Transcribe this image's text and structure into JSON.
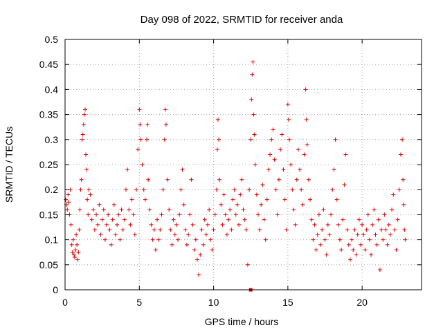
{
  "chart_data": {
    "type": "scatter",
    "title": "Day 098 of 2022, SRMTID for receiver anda",
    "xlabel": "GPS time / hours",
    "ylabel": "SRMTID / TECUs",
    "xlim": [
      0,
      24
    ],
    "ylim": [
      0,
      0.5
    ],
    "xticks": [
      0,
      5,
      10,
      15,
      20
    ],
    "xtick_labels": [
      "0",
      "5",
      "10",
      "15",
      "20"
    ],
    "yticks": [
      0,
      0.05,
      0.1,
      0.15,
      0.2,
      0.25,
      0.3,
      0.35,
      0.4,
      0.45,
      0.5
    ],
    "ytick_labels": [
      "0",
      "0.05",
      "0.1",
      "0.15",
      "0.2",
      "0.25",
      "0.3",
      "0.35",
      "0.4",
      "0.45",
      "0.5"
    ],
    "grid": true,
    "marker": "plus",
    "color": "#e00000",
    "series": [
      {
        "name": "SRMTID",
        "points": [
          [
            0.05,
            0.18
          ],
          [
            0.1,
            0.17
          ],
          [
            0.15,
            0.16
          ],
          [
            0.2,
            0.19
          ],
          [
            0.25,
            0.175
          ],
          [
            0.3,
            0.15
          ],
          [
            0.35,
            0.2
          ],
          [
            0.4,
            0.13
          ],
          [
            0.45,
            0.09
          ],
          [
            0.5,
            0.075
          ],
          [
            0.55,
            0.1
          ],
          [
            0.6,
            0.07
          ],
          [
            0.65,
            0.065
          ],
          [
            0.7,
            0.08
          ],
          [
            0.75,
            0.11
          ],
          [
            0.8,
            0.09
          ],
          [
            0.85,
            0.06
          ],
          [
            0.9,
            0.075
          ],
          [
            0.95,
            0.12
          ],
          [
            1.0,
            0.16
          ],
          [
            1.05,
            0.2
          ],
          [
            1.1,
            0.22
          ],
          [
            1.15,
            0.3
          ],
          [
            1.2,
            0.31
          ],
          [
            1.25,
            0.33
          ],
          [
            1.3,
            0.35
          ],
          [
            1.35,
            0.36
          ],
          [
            1.4,
            0.27
          ],
          [
            1.45,
            0.24
          ],
          [
            1.5,
            0.18
          ],
          [
            1.55,
            0.15
          ],
          [
            1.6,
            0.2
          ],
          [
            1.7,
            0.19
          ],
          [
            1.8,
            0.14
          ],
          [
            1.9,
            0.16
          ],
          [
            2.0,
            0.12
          ],
          [
            2.1,
            0.15
          ],
          [
            2.2,
            0.13
          ],
          [
            2.3,
            0.17
          ],
          [
            2.4,
            0.11
          ],
          [
            2.5,
            0.14
          ],
          [
            2.6,
            0.16
          ],
          [
            2.7,
            0.1
          ],
          [
            2.8,
            0.13
          ],
          [
            2.9,
            0.15
          ],
          [
            3.0,
            0.12
          ],
          [
            3.1,
            0.09
          ],
          [
            3.2,
            0.14
          ],
          [
            3.3,
            0.17
          ],
          [
            3.4,
            0.11
          ],
          [
            3.5,
            0.13
          ],
          [
            3.6,
            0.15
          ],
          [
            3.7,
            0.1
          ],
          [
            3.8,
            0.16
          ],
          [
            3.9,
            0.12
          ],
          [
            4.0,
            0.14
          ],
          [
            4.1,
            0.2
          ],
          [
            4.2,
            0.24
          ],
          [
            4.3,
            0.16
          ],
          [
            4.4,
            0.13
          ],
          [
            4.5,
            0.18
          ],
          [
            4.6,
            0.15
          ],
          [
            4.7,
            0.11
          ],
          [
            4.8,
            0.2
          ],
          [
            4.9,
            0.28
          ],
          [
            5.0,
            0.36
          ],
          [
            5.05,
            0.33
          ],
          [
            5.1,
            0.3
          ],
          [
            5.2,
            0.25
          ],
          [
            5.3,
            0.2
          ],
          [
            5.4,
            0.18
          ],
          [
            5.5,
            0.3
          ],
          [
            5.55,
            0.33
          ],
          [
            5.6,
            0.22
          ],
          [
            5.7,
            0.16
          ],
          [
            5.8,
            0.13
          ],
          [
            5.9,
            0.1
          ],
          [
            6.0,
            0.12
          ],
          [
            6.1,
            0.08
          ],
          [
            6.2,
            0.14
          ],
          [
            6.3,
            0.1
          ],
          [
            6.4,
            0.12
          ],
          [
            6.5,
            0.15
          ],
          [
            6.6,
            0.2
          ],
          [
            6.7,
            0.3
          ],
          [
            6.75,
            0.36
          ],
          [
            6.8,
            0.33
          ],
          [
            6.9,
            0.22
          ],
          [
            7.0,
            0.16
          ],
          [
            7.1,
            0.12
          ],
          [
            7.2,
            0.09
          ],
          [
            7.3,
            0.14
          ],
          [
            7.4,
            0.11
          ],
          [
            7.5,
            0.13
          ],
          [
            7.6,
            0.1
          ],
          [
            7.7,
            0.15
          ],
          [
            7.8,
            0.2
          ],
          [
            7.9,
            0.24
          ],
          [
            8.0,
            0.17
          ],
          [
            8.1,
            0.12
          ],
          [
            8.2,
            0.09
          ],
          [
            8.3,
            0.11
          ],
          [
            8.4,
            0.15
          ],
          [
            8.5,
            0.22
          ],
          [
            8.6,
            0.13
          ],
          [
            8.7,
            0.08
          ],
          [
            8.8,
            0.1
          ],
          [
            8.9,
            0.06
          ],
          [
            9.0,
            0.03
          ],
          [
            9.1,
            0.07
          ],
          [
            9.2,
            0.12
          ],
          [
            9.3,
            0.09
          ],
          [
            9.4,
            0.14
          ],
          [
            9.5,
            0.11
          ],
          [
            9.6,
            0.13
          ],
          [
            9.7,
            0.16
          ],
          [
            9.8,
            0.1
          ],
          [
            9.9,
            0.08
          ],
          [
            10.0,
            0.12
          ],
          [
            10.1,
            0.15
          ],
          [
            10.2,
            0.2
          ],
          [
            10.25,
            0.28
          ],
          [
            10.3,
            0.34
          ],
          [
            10.35,
            0.3
          ],
          [
            10.4,
            0.22
          ],
          [
            10.5,
            0.17
          ],
          [
            10.6,
            0.13
          ],
          [
            10.7,
            0.19
          ],
          [
            10.8,
            0.15
          ],
          [
            10.9,
            0.11
          ],
          [
            11.0,
            0.14
          ],
          [
            11.1,
            0.16
          ],
          [
            11.2,
            0.12
          ],
          [
            11.3,
            0.18
          ],
          [
            11.4,
            0.2
          ],
          [
            11.5,
            0.15
          ],
          [
            11.6,
            0.17
          ],
          [
            11.7,
            0.13
          ],
          [
            11.8,
            0.19
          ],
          [
            11.9,
            0.22
          ],
          [
            12.0,
            0.16
          ],
          [
            12.1,
            0.14
          ],
          [
            12.2,
            0.12
          ],
          [
            12.3,
            0.05
          ],
          [
            12.4,
            0.2
          ],
          [
            12.5,
            0.3
          ],
          [
            12.55,
            0.38
          ],
          [
            12.6,
            0.43
          ],
          [
            12.65,
            0.455
          ],
          [
            12.7,
            0.35
          ],
          [
            12.75,
            0.31
          ],
          [
            12.8,
            0.25
          ],
          [
            12.9,
            0.19
          ],
          [
            13.0,
            0.15
          ],
          [
            13.1,
            0.12
          ],
          [
            13.2,
            0.17
          ],
          [
            13.3,
            0.21
          ],
          [
            13.4,
            0.14
          ],
          [
            13.5,
            0.1
          ],
          [
            13.6,
            0.18
          ],
          [
            13.7,
            0.24
          ],
          [
            13.8,
            0.27
          ],
          [
            13.9,
            0.3
          ],
          [
            14.0,
            0.32
          ],
          [
            14.1,
            0.26
          ],
          [
            14.2,
            0.2
          ],
          [
            14.3,
            0.15
          ],
          [
            14.4,
            0.22
          ],
          [
            14.5,
            0.28
          ],
          [
            14.6,
            0.31
          ],
          [
            14.7,
            0.24
          ],
          [
            14.8,
            0.18
          ],
          [
            14.9,
            0.12
          ],
          [
            15.0,
            0.37
          ],
          [
            15.05,
            0.34
          ],
          [
            15.1,
            0.3
          ],
          [
            15.2,
            0.25
          ],
          [
            15.3,
            0.2
          ],
          [
            15.4,
            0.16
          ],
          [
            15.5,
            0.13
          ],
          [
            15.6,
            0.22
          ],
          [
            15.7,
            0.28
          ],
          [
            15.8,
            0.24
          ],
          [
            15.9,
            0.2
          ],
          [
            16.0,
            0.17
          ],
          [
            16.1,
            0.27
          ],
          [
            16.2,
            0.4
          ],
          [
            16.25,
            0.34
          ],
          [
            16.3,
            0.29
          ],
          [
            16.4,
            0.22
          ],
          [
            16.5,
            0.18
          ],
          [
            16.6,
            0.14
          ],
          [
            16.7,
            0.1
          ],
          [
            16.8,
            0.13
          ],
          [
            16.9,
            0.08
          ],
          [
            17.0,
            0.11
          ],
          [
            17.1,
            0.15
          ],
          [
            17.2,
            0.09
          ],
          [
            17.3,
            0.12
          ],
          [
            17.4,
            0.16
          ],
          [
            17.5,
            0.1
          ],
          [
            17.6,
            0.07
          ],
          [
            17.7,
            0.13
          ],
          [
            17.8,
            0.11
          ],
          [
            17.9,
            0.15
          ],
          [
            18.0,
            0.2
          ],
          [
            18.1,
            0.24
          ],
          [
            18.2,
            0.3
          ],
          [
            18.3,
            0.18
          ],
          [
            18.4,
            0.13
          ],
          [
            18.5,
            0.1
          ],
          [
            18.6,
            0.08
          ],
          [
            18.7,
            0.14
          ],
          [
            18.8,
            0.21
          ],
          [
            18.9,
            0.27
          ],
          [
            19.0,
            0.12
          ],
          [
            19.1,
            0.09
          ],
          [
            19.2,
            0.06
          ],
          [
            19.3,
            0.1
          ],
          [
            19.4,
            0.08
          ],
          [
            19.5,
            0.12
          ],
          [
            19.6,
            0.07
          ],
          [
            19.7,
            0.11
          ],
          [
            19.8,
            0.14
          ],
          [
            19.9,
            0.09
          ],
          [
            20.0,
            0.13
          ],
          [
            20.1,
            0.11
          ],
          [
            20.2,
            0.08
          ],
          [
            20.3,
            0.12
          ],
          [
            20.4,
            0.15
          ],
          [
            20.5,
            0.1
          ],
          [
            20.6,
            0.07
          ],
          [
            20.7,
            0.13
          ],
          [
            20.8,
            0.16
          ],
          [
            20.9,
            0.11
          ],
          [
            21.0,
            0.09
          ],
          [
            21.1,
            0.14
          ],
          [
            21.2,
            0.04
          ],
          [
            21.3,
            0.12
          ],
          [
            21.4,
            0.1
          ],
          [
            21.5,
            0.15
          ],
          [
            21.6,
            0.12
          ],
          [
            21.7,
            0.09
          ],
          [
            21.8,
            0.13
          ],
          [
            21.9,
            0.11
          ],
          [
            22.0,
            0.16
          ],
          [
            22.1,
            0.19
          ],
          [
            22.2,
            0.12
          ],
          [
            22.3,
            0.08
          ],
          [
            22.4,
            0.14
          ],
          [
            22.5,
            0.2
          ],
          [
            22.6,
            0.27
          ],
          [
            22.7,
            0.3
          ],
          [
            22.75,
            0.22
          ],
          [
            22.8,
            0.17
          ],
          [
            22.85,
            0.12
          ],
          [
            22.9,
            0.1
          ]
        ]
      }
    ],
    "annotations": [
      {
        "type": "filled-square-marker",
        "x": 12.5,
        "y": 0
      }
    ]
  }
}
